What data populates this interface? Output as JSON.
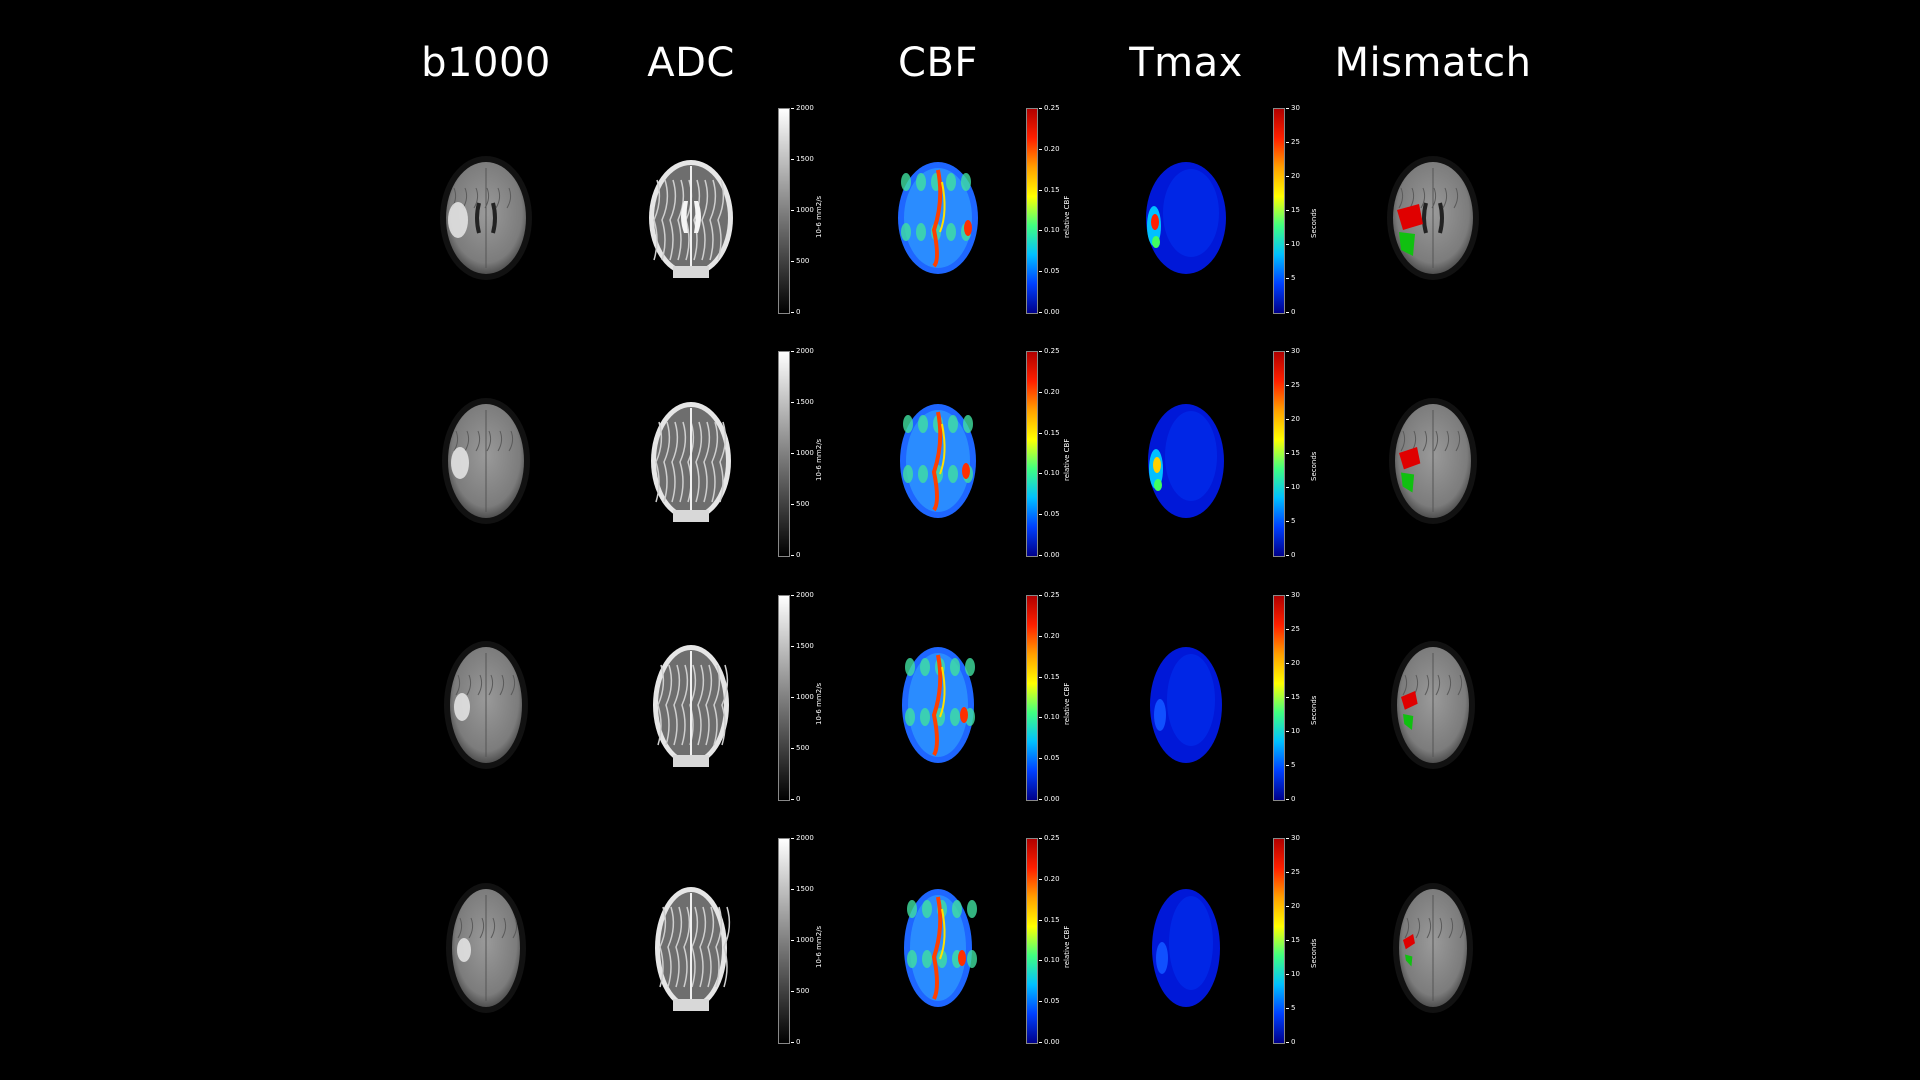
{
  "columns": [
    {
      "key": "b1000",
      "title": "b1000"
    },
    {
      "key": "adc",
      "title": "ADC"
    },
    {
      "key": "cbf",
      "title": "CBF"
    },
    {
      "key": "tmax",
      "title": "Tmax"
    },
    {
      "key": "mismatch",
      "title": "Mismatch"
    }
  ],
  "colorbars": {
    "adc": {
      "label": "10-6 mm2/s",
      "ticks": [
        "2000",
        "1500",
        "1000",
        "500",
        "0"
      ],
      "colors": [
        "#ffffff",
        "#000000"
      ]
    },
    "cbf": {
      "label": "relative CBF",
      "ticks": [
        "0.25",
        "0.20",
        "0.15",
        "0.10",
        "0.05",
        "0.00"
      ],
      "colors": [
        "#b00000",
        "#ff2000",
        "#ffa000",
        "#ffff00",
        "#40ff80",
        "#00c0ff",
        "#0040ff",
        "#00008a"
      ]
    },
    "tmax": {
      "label": "Seconds",
      "ticks": [
        "30",
        "25",
        "20",
        "15",
        "10",
        "5",
        "0"
      ],
      "colors": [
        "#b00000",
        "#ff2000",
        "#ffa000",
        "#ffff00",
        "#40ff80",
        "#00c0ff",
        "#0040ff",
        "#00008a"
      ]
    }
  },
  "rows": 4
}
